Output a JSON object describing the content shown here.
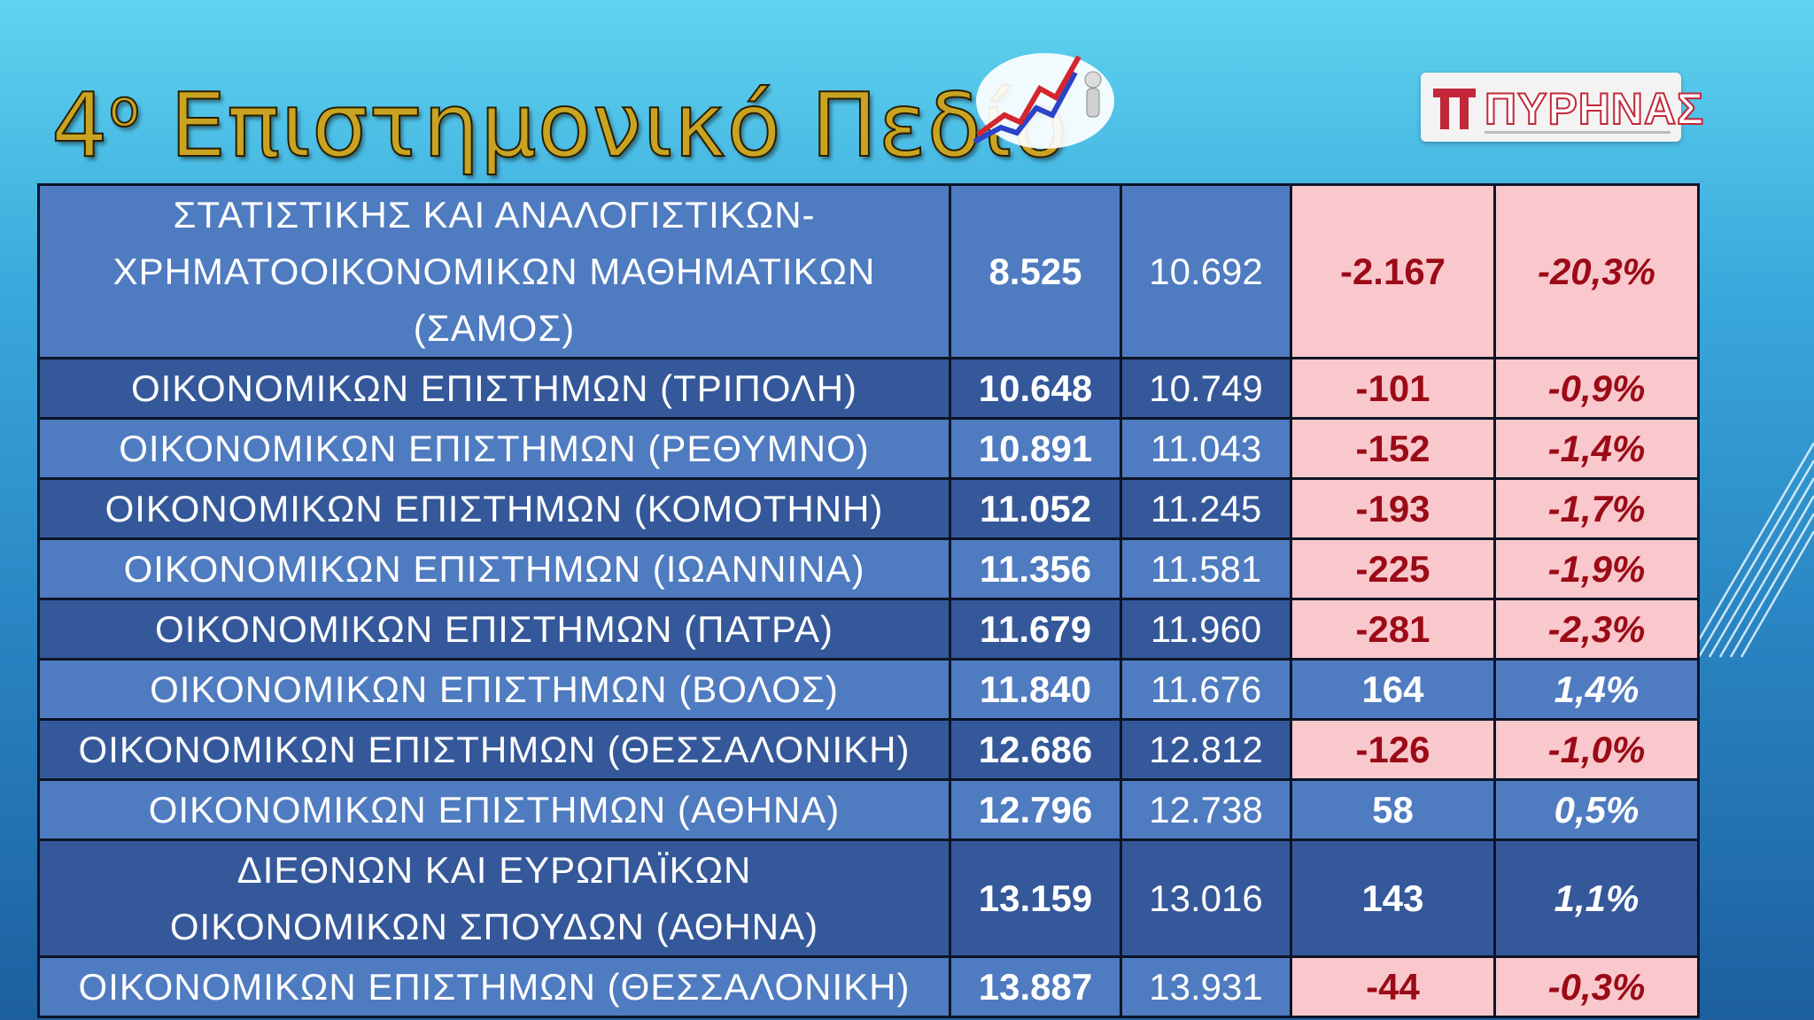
{
  "title": {
    "number": "4",
    "ordinal": "ο",
    "text": "Επιστημονικό Πεδίο"
  },
  "logo": {
    "brand_text": "ΠΥΡΗΝΑΣ"
  },
  "colors": {
    "row_light": "#4f7bc0",
    "row_dark": "#34589a",
    "negative_bg": "#f9c8cc",
    "negative_text": "#9b0b17"
  },
  "rows": [
    {
      "name": "ΣΤΑΤΙΣΤΙΚΗΣ ΚΑΙ ΑΝΑΛΟΓΙΣΤΙΚΩΝ-ΧΡΗΜΑΤΟΟΙΚΟΝΟΜΙΚΩΝ ΜΑΘΗΜΑΤΙΚΩΝ (ΣΑΜΟΣ)",
      "val1": "8.525",
      "val2": "10.692",
      "diff": "-2.167",
      "pct": "-20,3%",
      "negative": true,
      "shade": "light",
      "lines": 3
    },
    {
      "name": "ΟΙΚΟΝΟΜΙΚΩΝ ΕΠΙΣΤΗΜΩΝ (ΤΡΙΠΟΛΗ)",
      "val1": "10.648",
      "val2": "10.749",
      "diff": "-101",
      "pct": "-0,9%",
      "negative": true,
      "shade": "dark",
      "lines": 1
    },
    {
      "name": "ΟΙΚΟΝΟΜΙΚΩΝ ΕΠΙΣΤΗΜΩΝ (ΡΕΘΥΜΝΟ)",
      "val1": "10.891",
      "val2": "11.043",
      "diff": "-152",
      "pct": "-1,4%",
      "negative": true,
      "shade": "light",
      "lines": 1
    },
    {
      "name": "ΟΙΚΟΝΟΜΙΚΩΝ ΕΠΙΣΤΗΜΩΝ (ΚΟΜΟΤΗΝΗ)",
      "val1": "11.052",
      "val2": "11.245",
      "diff": "-193",
      "pct": "-1,7%",
      "negative": true,
      "shade": "dark",
      "lines": 1
    },
    {
      "name": "ΟΙΚΟΝΟΜΙΚΩΝ ΕΠΙΣΤΗΜΩΝ (ΙΩΑΝΝΙΝΑ)",
      "val1": "11.356",
      "val2": "11.581",
      "diff": "-225",
      "pct": "-1,9%",
      "negative": true,
      "shade": "light",
      "lines": 1
    },
    {
      "name": "ΟΙΚΟΝΟΜΙΚΩΝ ΕΠΙΣΤΗΜΩΝ (ΠΑΤΡΑ)",
      "val1": "11.679",
      "val2": "11.960",
      "diff": "-281",
      "pct": "-2,3%",
      "negative": true,
      "shade": "dark",
      "lines": 1
    },
    {
      "name": "ΟΙΚΟΝΟΜΙΚΩΝ ΕΠΙΣΤΗΜΩΝ (ΒΟΛΟΣ)",
      "val1": "11.840",
      "val2": "11.676",
      "diff": "164",
      "pct": "1,4%",
      "negative": false,
      "shade": "light",
      "lines": 1
    },
    {
      "name": "ΟΙΚΟΝΟΜΙΚΩΝ ΕΠΙΣΤΗΜΩΝ (ΘΕΣΣΑΛΟΝΙΚΗ)",
      "val1": "12.686",
      "val2": "12.812",
      "diff": "-126",
      "pct": "-1,0%",
      "negative": true,
      "shade": "dark",
      "lines": 1
    },
    {
      "name": "ΟΙΚΟΝΟΜΙΚΩΝ ΕΠΙΣΤΗΜΩΝ (ΑΘΗΝΑ)",
      "val1": "12.796",
      "val2": "12.738",
      "diff": "58",
      "pct": "0,5%",
      "negative": false,
      "shade": "light",
      "lines": 1
    },
    {
      "name": "ΔΙΕΘΝΩΝ ΚΑΙ ΕΥΡΩΠΑΪΚΩΝ ΟΙΚΟΝΟΜΙΚΩΝ ΣΠΟΥΔΩΝ (ΑΘΗΝΑ)",
      "val1": "13.159",
      "val2": "13.016",
      "diff": "143",
      "pct": "1,1%",
      "negative": false,
      "shade": "dark",
      "lines": 2
    },
    {
      "name": "ΟΙΚΟΝΟΜΙΚΩΝ ΕΠΙΣΤΗΜΩΝ (ΘΕΣΣΑΛΟΝΙΚΗ)",
      "val1": "13.887",
      "val2": "13.931",
      "diff": "-44",
      "pct": "-0,3%",
      "negative": true,
      "shade": "light",
      "lines": 1
    }
  ]
}
